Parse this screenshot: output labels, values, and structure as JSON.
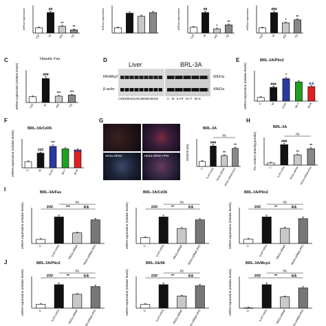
{
  "figure": {
    "top_row": [
      {
        "ylabel": "mRNA expression",
        "cats": [
          "Ctrl",
          "M",
          "KD",
          "TD"
        ],
        "values": [
          1.0,
          3.9,
          1.3,
          0.6
        ],
        "sig": [
          "",
          "##",
          "**",
          "**"
        ]
      },
      {
        "ylabel": "mRNA expression",
        "cats": [
          "",
          "",
          "",
          ""
        ],
        "values": [
          1.0,
          3.8,
          3.2,
          3.9
        ],
        "sig": [
          "",
          "",
          "",
          ""
        ]
      },
      {
        "ylabel": "mRNA expression",
        "cats": [
          "Ctrl",
          "M",
          "KD",
          "TD"
        ],
        "values": [
          1.0,
          3.5,
          0.7,
          1.4
        ],
        "sig": [
          "",
          "##",
          "*",
          "**"
        ]
      },
      {
        "ylabel": "mRNA expression",
        "cats": [
          "Ctrl",
          "M",
          "KD",
          "TD"
        ],
        "values": [
          1.0,
          4.0,
          2.0,
          2.6
        ],
        "sig": [
          "",
          "###",
          "*",
          "**"
        ]
      }
    ],
    "panel_C": {
      "letter": "C",
      "title": "Hepatic Fas",
      "ylabel": "mRNA expression (relative levels)",
      "cats": [
        "Ctrl",
        "M",
        "KD",
        "TD"
      ],
      "values": [
        1.0,
        4.2,
        1.1,
        1.3
      ],
      "sig": [
        "",
        "###",
        "***",
        "***"
      ]
    },
    "panel_D": {
      "letter": "D",
      "liver_label": "Liver",
      "brl_label": "BRL-3A",
      "row1_label": "RRARγ2",
      "row2_label": "β-actin",
      "kda1": "60kDa",
      "kda2": "43kDa",
      "lanes_liver": "C20M20H20120C30M30H30130",
      "lanes_brl": "C M 5-HT M+T M+K"
    },
    "panel_E": {
      "letter": "E",
      "title": "BRL-3A/Plin2",
      "ylabel": "mRNA expression (relative levels)",
      "cats": [
        "C",
        "M",
        "5-HT",
        "M+T",
        "M+K"
      ],
      "values": [
        1.0,
        3.8,
        6.2,
        5.3,
        4.0
      ],
      "colors": [
        "#ffffff",
        "#111111",
        "#2a3a9e",
        "#1fa01f",
        "#e02020"
      ],
      "sig": [
        "",
        "###",
        "*",
        "",
        ""
      ],
      "sig2": "&&"
    },
    "panel_F": {
      "letter": "F",
      "title": "BRL-3A/Cd36",
      "ylabel": "mRNA expression (relative levels)",
      "cats": [
        "C",
        "M",
        "5-HT",
        "M+T",
        "M+K"
      ],
      "values": [
        1.0,
        2.4,
        3.5,
        3.1,
        2.9
      ],
      "colors": [
        "#ffffff",
        "#111111",
        "#2a3a9e",
        "#1fa01f",
        "#e02020"
      ],
      "sig": [
        "",
        "###",
        "***",
        "",
        ""
      ],
      "sig2": "&&&"
    },
    "panel_G": {
      "letter": "G",
      "title": "BRL-3A",
      "ylabel": "OD(570 nm)",
      "img_labels": [
        "Htr2a siRNA",
        "Htr2a siRNA+PIO"
      ],
      "cats": [
        "C",
        "5-HT+FFA",
        "Htr2a siRNA",
        "Htr2a siRNA+PIO"
      ],
      "values": [
        0.15,
        0.62,
        0.33,
        0.55
      ],
      "sig": [
        "",
        "###",
        "**",
        "**"
      ],
      "ns": "ns"
    },
    "panel_H": {
      "letter": "H",
      "title": "BRL-3A",
      "ylabel": "TG content (mmol/g protein)",
      "cats": [
        "C",
        "5-HT+FFA",
        "Htr2a siRNA",
        "Htr2a siRNA+PIO"
      ],
      "values": [
        0.1,
        1.0,
        0.5,
        0.8
      ],
      "sig": [
        "",
        "###",
        "**",
        "**"
      ],
      "ns": "ns"
    },
    "row_I": [
      {
        "letter": "I",
        "title": "BRL-3A/Fas",
        "ylabel": "mRNA expression (relative levels)",
        "cats": [
          "C",
          "5-HT+FFA",
          "Htr2a siRNA",
          "Htr2a siRNA+PIO"
        ],
        "values": [
          1.0,
          6.5,
          2.6,
          5.8
        ],
        "brackets": [
          "###",
          "***",
          "&&"
        ],
        "ns": "ns"
      },
      {
        "letter": "",
        "title": "BRL-3A/Cd36",
        "ylabel": "mRNA expression (relative levels)",
        "cats": [
          "C",
          "5-HT+FFA",
          "Htr2a siRNA",
          "Htr2a siRNA+PIO"
        ],
        "values": [
          1.0,
          4.6,
          2.6,
          4.1
        ],
        "brackets": [
          "###",
          "**",
          "&&"
        ],
        "ns": "ns"
      },
      {
        "letter": "",
        "title": "BRL-3A/Plin2",
        "ylabel": "mRNA expression (relative levels)",
        "cats": [
          "C",
          "5-HT+FFA",
          "Htr2a siRNA",
          "Htr2a siRNA+PIO"
        ],
        "values": [
          1.0,
          6.3,
          3.6,
          5.9
        ],
        "brackets": [
          "###",
          "**",
          "&&"
        ],
        "ns": "ns"
      }
    ],
    "row_J": [
      {
        "letter": "J",
        "title": "BRL-3A/Plin2",
        "ylabel": "mRNA expression (relative levels)",
        "cats": [
          "C",
          "5-HT+FFA",
          "Htr2a siRNA",
          "Htr2a siRNA+PIO"
        ],
        "values": [
          1.0,
          6.1,
          3.6,
          5.6
        ],
        "brackets": [
          "###",
          "**",
          "&&"
        ],
        "ns": "ns"
      },
      {
        "letter": "",
        "title": "BRL-3A/Il6",
        "ylabel": "mRNA expression (relative levels)",
        "cats": [
          "C",
          "5-HT+FFA",
          "Htr2a siRNA",
          "Htr2a siRNA+PIO"
        ],
        "values": [
          1.0,
          6.4,
          3.3,
          6.1
        ],
        "brackets": [
          "###",
          "**",
          "&&"
        ],
        "ns": "ns"
      },
      {
        "letter": "",
        "title": "BRL-3A/Mcp1",
        "ylabel": "mRNA expression (relative levels)",
        "cats": [
          "C",
          "5-HT+FFA",
          "Htr2a siRNA",
          "Htr2a siRNA+PIO"
        ],
        "values": [
          0.05,
          5.0,
          2.4,
          4.3
        ],
        "brackets": [
          "###",
          "**",
          "&&"
        ],
        "ns": "ns"
      }
    ]
  },
  "chart_data": [
    {
      "type": "bar",
      "categories": [
        "C",
        "M",
        "5-HT",
        "M+T",
        "M+K"
      ],
      "values": [
        1.0,
        3.8,
        6.2,
        5.3,
        4.0
      ],
      "title": "BRL-3A/Plin2",
      "ylabel": "mRNA expression (relative levels)"
    },
    {
      "type": "bar",
      "categories": [
        "C",
        "M",
        "5-HT",
        "M+T",
        "M+K"
      ],
      "values": [
        1.0,
        2.4,
        3.5,
        3.1,
        2.9
      ],
      "title": "BRL-3A/Cd36",
      "ylabel": "mRNA expression (relative levels)"
    },
    {
      "type": "bar",
      "categories": [
        "C",
        "5-HT+FFA",
        "Htr2a siRNA",
        "Htr2a siRNA+PIO"
      ],
      "values": [
        1.0,
        6.5,
        2.6,
        5.8
      ],
      "title": "BRL-3A/Fas"
    },
    {
      "type": "bar",
      "categories": [
        "C",
        "5-HT+FFA",
        "Htr2a siRNA",
        "Htr2a siRNA+PIO"
      ],
      "values": [
        1.0,
        4.6,
        2.6,
        4.1
      ],
      "title": "BRL-3A/Cd36"
    },
    {
      "type": "bar",
      "categories": [
        "C",
        "5-HT+FFA",
        "Htr2a siRNA",
        "Htr2a siRNA+PIO"
      ],
      "values": [
        1.0,
        6.3,
        3.6,
        5.9
      ],
      "title": "BRL-3A/Plin2"
    },
    {
      "type": "bar",
      "categories": [
        "C",
        "5-HT+FFA",
        "Htr2a siRNA",
        "Htr2a siRNA+PIO"
      ],
      "values": [
        1.0,
        6.1,
        3.6,
        5.6
      ],
      "title": "BRL-3A/Plin2"
    },
    {
      "type": "bar",
      "categories": [
        "C",
        "5-HT+FFA",
        "Htr2a siRNA",
        "Htr2a siRNA+PIO"
      ],
      "values": [
        1.0,
        6.4,
        3.3,
        6.1
      ],
      "title": "BRL-3A/Il6"
    },
    {
      "type": "bar",
      "categories": [
        "C",
        "5-HT+FFA",
        "Htr2a siRNA",
        "Htr2a siRNA+PIO"
      ],
      "values": [
        0.05,
        5.0,
        2.4,
        4.3
      ],
      "title": "BRL-3A/Mcp1"
    }
  ]
}
